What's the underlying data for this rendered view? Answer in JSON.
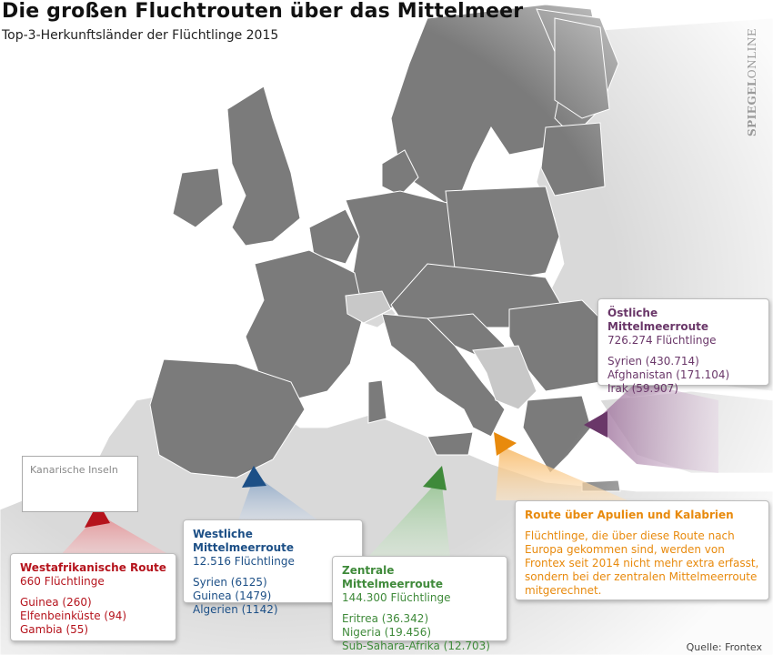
{
  "title": "Die großen Fluchtrouten über das Mittelmeer",
  "subtitle": "Top-3-Herkunftsländer der Flüchtlinge 2015",
  "watermark": {
    "bold": "SPIEGEL",
    "rest": "ONLINE"
  },
  "source": "Quelle: Frontex",
  "inset": {
    "label": "Kanarische Inseln"
  },
  "colors": {
    "sea": "#ffffff",
    "eu_land": "#7b7b7b",
    "non_eu_land": "#d9d9d9",
    "westafrica": "#b5131c",
    "west_med": "#1c4f86",
    "central_med": "#3f8a3a",
    "apulia": "#e88a0d",
    "east_med": "#6a3769"
  },
  "routes": {
    "westafrica": {
      "name": "Westafrikanische Route",
      "count": "660 Flüchtlinge",
      "origins": [
        "Guinea (260)",
        "Elfenbeinküste (94)",
        "Gambia (55)"
      ]
    },
    "west_med": {
      "name": "Westliche Mittelmeerroute",
      "count": "12.516 Flüchtlinge",
      "origins": [
        "Syrien (6125)",
        "Guinea (1479)",
        "Algerien (1142)"
      ]
    },
    "central_med": {
      "name": "Zentrale Mittelmeerroute",
      "count": "144.300 Flüchtlinge",
      "origins": [
        "Eritrea (36.342)",
        "Nigeria (19.456)",
        "Sub-Sahara-Afrika (12.703)"
      ]
    },
    "apulia": {
      "name": "Route über Apulien und Kalabrien",
      "note": "Flüchtlinge, die über diese Route nach Europa gekommen sind, werden von Frontex seit 2014 nicht mehr extra erfasst, sondern bei der zentralen Mittelmeerroute mitgerechnet."
    },
    "east_med": {
      "name": "Östliche Mittelmeerroute",
      "count": "726.274 Flüchtlinge",
      "origins": [
        "Syrien (430.714)",
        "Afghanistan (171.104)",
        "Irak (59.907)"
      ]
    }
  }
}
